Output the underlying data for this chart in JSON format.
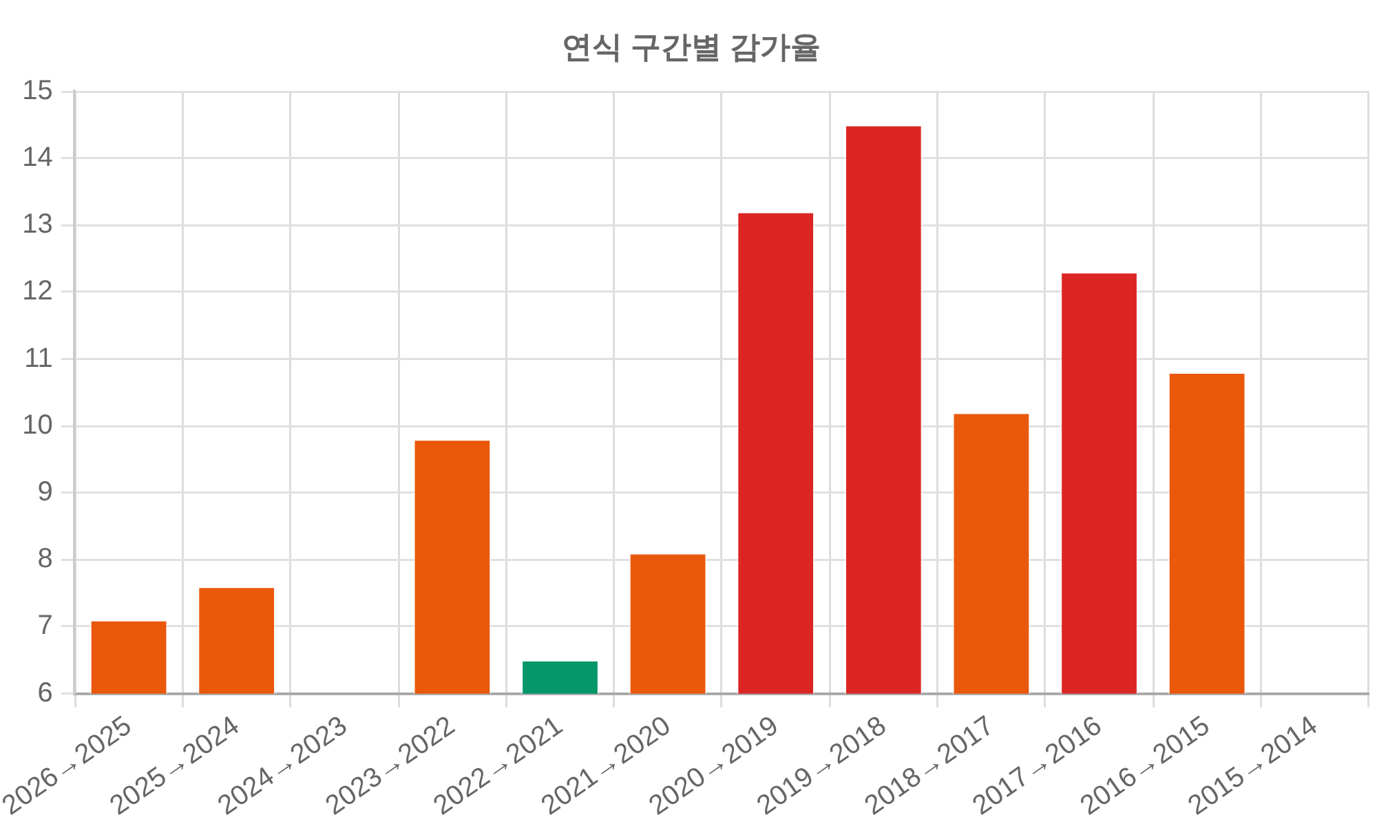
{
  "chart_data": {
    "type": "bar",
    "title": "연식 구간별 감가율",
    "categories": [
      "2026→2025",
      "2025→2024",
      "2024→2023",
      "2023→2022",
      "2022→2021",
      "2021→2020",
      "2020→2019",
      "2019→2018",
      "2018→2017",
      "2017→2016",
      "2016→2015",
      "2015→2014"
    ],
    "values": [
      7.1,
      7.6,
      null,
      9.8,
      6.5,
      8.1,
      13.2,
      14.5,
      10.2,
      12.3,
      10.8,
      null
    ],
    "colors": [
      "#ea580c",
      "#ea580c",
      "#ea580c",
      "#ea580c",
      "#059669",
      "#ea580c",
      "#dc2626",
      "#dc2626",
      "#ea580c",
      "#dc2626",
      "#ea580c",
      "#ea580c"
    ],
    "ylim": [
      6,
      15
    ],
    "yticks": [
      6,
      7,
      8,
      9,
      10,
      11,
      12,
      13,
      14,
      15
    ],
    "grid": true,
    "legend": false
  }
}
